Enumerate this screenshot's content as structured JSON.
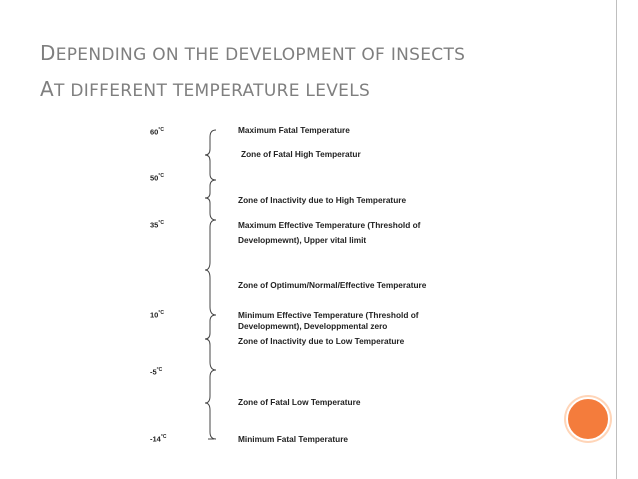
{
  "title": {
    "line1": "Depending on the development of insects",
    "line2": "at different temperature levels"
  },
  "temperatures": [
    {
      "value": "60",
      "unit": "°C"
    },
    {
      "value": "50",
      "unit": "°C"
    },
    {
      "value": "35",
      "unit": "°C"
    },
    {
      "value": "10",
      "unit": "°C"
    },
    {
      "value": "-5",
      "unit": "°C"
    },
    {
      "value": "-14",
      "unit": "°C"
    }
  ],
  "labels": [
    "Maximum Fatal Temperature",
    "Zone of Fatal High Temperatur",
    "Zone of Inactivity due to High Temperature",
    "Maximum Effective Temperature (Threshold of",
    "Developmewnt), Upper vital limit",
    "Zone of Optimum/Normal/Effective Temperature",
    "Minimum Effective Temperature (Threshold of",
    "Developmewnt), Developpmental zero",
    "Zone of Inactivity due to Low Temperature",
    "Zone of Fatal Low Temperature",
    "Minimum Fatal Temperature"
  ],
  "colors": {
    "title": "#7f7f7f",
    "accent_circle": "#f47c3c",
    "border": "#bfbfbf"
  }
}
